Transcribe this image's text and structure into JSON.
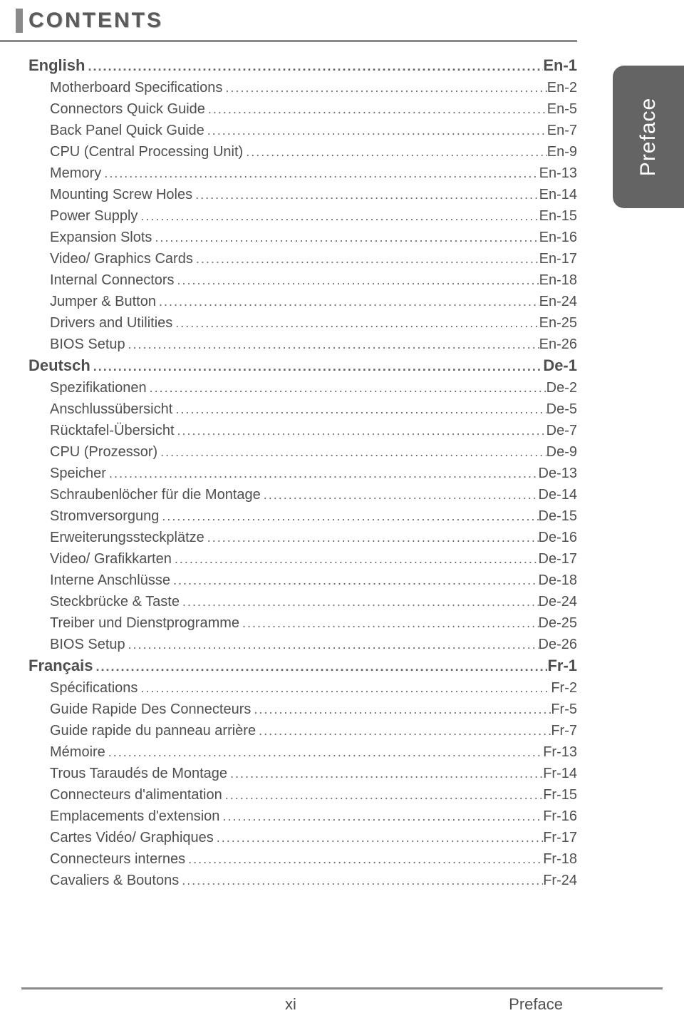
{
  "page_title": "CONTENTS",
  "side_tab": "Preface",
  "footer_left": "xi",
  "footer_right": "Preface",
  "sections": [
    {
      "label": "English",
      "page": "En-1",
      "entries": [
        {
          "label": "Motherboard Specifications",
          "page": "En-2"
        },
        {
          "label": "Connectors Quick Guide",
          "page": "En-5"
        },
        {
          "label": "Back Panel Quick Guide",
          "page": "En-7"
        },
        {
          "label": "CPU (Central Processing Unit)",
          "page": "En-9"
        },
        {
          "label": "Memory",
          "page": "En-13"
        },
        {
          "label": "Mounting Screw Holes",
          "page": "En-14"
        },
        {
          "label": "Power Supply",
          "page": "En-15"
        },
        {
          "label": "Expansion Slots",
          "page": "En-16"
        },
        {
          "label": "Video/ Graphics Cards",
          "page": "En-17"
        },
        {
          "label": "Internal Connectors",
          "page": "En-18"
        },
        {
          "label": "Jumper & Button",
          "page": "En-24"
        },
        {
          "label": "Drivers and Utilities",
          "page": "En-25"
        },
        {
          "label": "BIOS Setup",
          "page": "En-26"
        }
      ]
    },
    {
      "label": "Deutsch",
      "page": "De-1",
      "entries": [
        {
          "label": "Spezifikationen",
          "page": "De-2"
        },
        {
          "label": "Anschlussübersicht",
          "page": "De-5"
        },
        {
          "label": "Rücktafel-Übersicht",
          "page": "De-7"
        },
        {
          "label": "CPU (Prozessor)",
          "page": "De-9"
        },
        {
          "label": "Speicher",
          "page": "De-13"
        },
        {
          "label": "Schraubenlöcher für die Montage",
          "page": "De-14"
        },
        {
          "label": "Stromversorgung",
          "page": "De-15"
        },
        {
          "label": "Erweiterungssteckplätze",
          "page": "De-16"
        },
        {
          "label": "Video/ Grafikkarten",
          "page": "De-17"
        },
        {
          "label": "Interne Anschlüsse",
          "page": "De-18"
        },
        {
          "label": "Steckbrücke & Taste",
          "page": "De-24"
        },
        {
          "label": "Treiber und Dienstprogramme",
          "page": "De-25"
        },
        {
          "label": "BIOS Setup",
          "page": "De-26"
        }
      ]
    },
    {
      "label": "Français",
      "page": "Fr-1",
      "entries": [
        {
          "label": "Spécifications",
          "page": "Fr-2"
        },
        {
          "label": "Guide Rapide Des Connecteurs",
          "page": "Fr-5"
        },
        {
          "label": "Guide rapide du panneau arrière",
          "page": "Fr-7"
        },
        {
          "label": "Mémoire",
          "page": "Fr-13"
        },
        {
          "label": "Trous Taraudés de Montage",
          "page": "Fr-14"
        },
        {
          "label": "Connecteurs d'alimentation",
          "page": "Fr-15"
        },
        {
          "label": "Emplacements d'extension",
          "page": "Fr-16"
        },
        {
          "label": "Cartes Vidéo/ Graphiques",
          "page": "Fr-17"
        },
        {
          "label": "Connecteurs internes",
          "page": "Fr-18"
        },
        {
          "label": "Cavaliers & Boutons",
          "page": "Fr-24"
        }
      ]
    }
  ],
  "colors": {
    "text": "#4f4f4f",
    "rule": "#8a8a8a",
    "tab_bg": "#646464",
    "tab_text": "#ffffff",
    "background": "#ffffff"
  },
  "typography": {
    "title_fontsize": 30,
    "section_fontsize": 22,
    "entry_fontsize": 20,
    "line_height": 30
  }
}
